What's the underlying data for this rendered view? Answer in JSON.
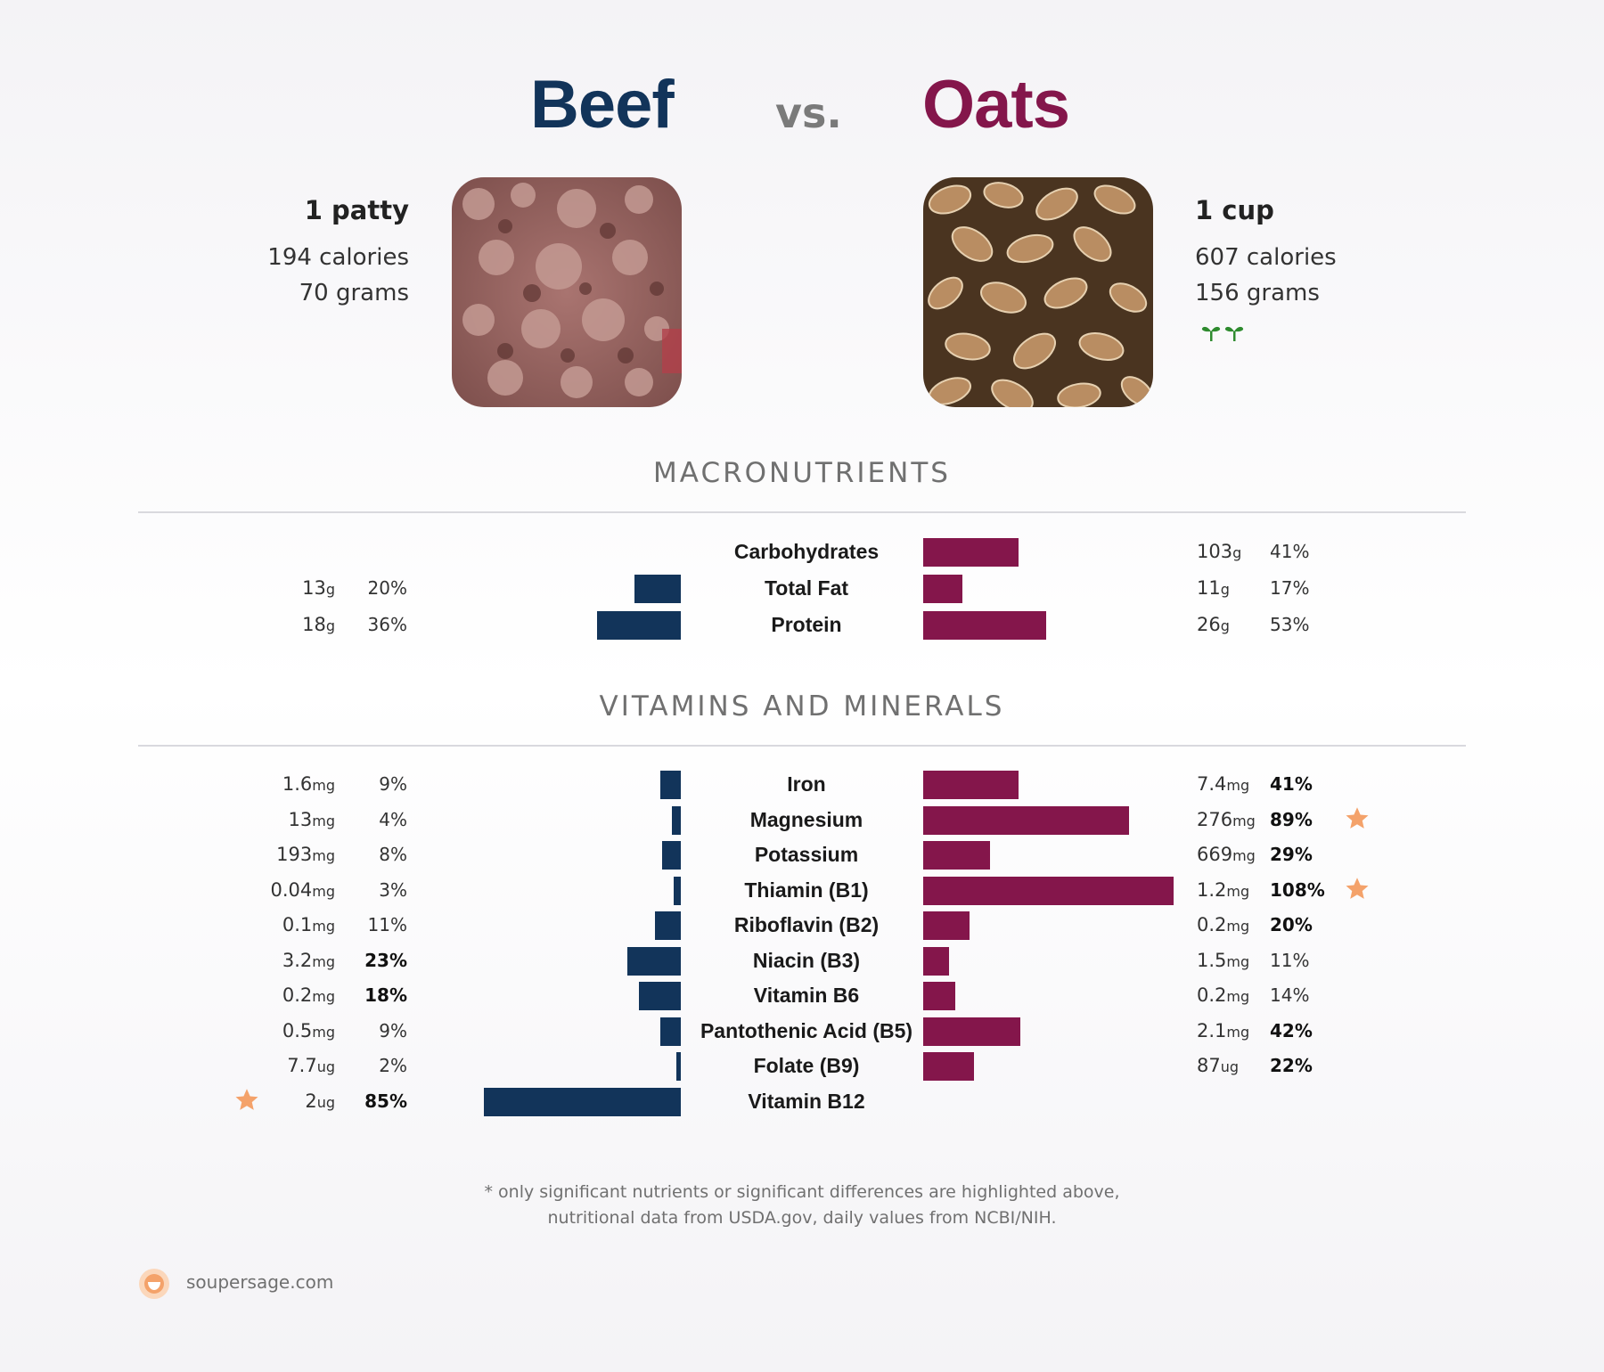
{
  "colors": {
    "beef": "#12345a",
    "oats": "#84164b",
    "star": "#f4a26a",
    "leaf": "#2e8b2e"
  },
  "header": {
    "left_food": "Beef",
    "vs": "vs.",
    "right_food": "Oats"
  },
  "left": {
    "serving": "1 patty",
    "calories": "194 calories",
    "grams": "70 grams"
  },
  "right": {
    "serving": "1 cup",
    "calories": "607 calories",
    "grams": "156 grams",
    "icon": "sprout-icon"
  },
  "sections": {
    "macro": "MACRONUTRIENTS",
    "vitamins": "VITAMINS AND MINERALS"
  },
  "chart_data": [
    {
      "type": "bar",
      "title": "MACRONUTRIENTS",
      "categories": [
        "Carbohydrates",
        "Total Fat",
        "Protein"
      ],
      "series": [
        {
          "name": "Beef",
          "amounts": [
            "",
            "13",
            "18"
          ],
          "units": [
            "",
            "g",
            "g"
          ],
          "values": [
            null,
            20,
            36
          ],
          "bold": [
            false,
            false,
            false
          ]
        },
        {
          "name": "Oats",
          "amounts": [
            "103",
            "11",
            "26"
          ],
          "units": [
            "g",
            "g",
            "g"
          ],
          "values": [
            41,
            17,
            53
          ],
          "bold": [
            false,
            false,
            false
          ]
        }
      ]
    },
    {
      "type": "bar",
      "title": "VITAMINS AND MINERALS",
      "categories": [
        "Iron",
        "Magnesium",
        "Potassium",
        "Thiamin (B1)",
        "Riboflavin (B2)",
        "Niacin (B3)",
        "Vitamin B6",
        "Pantothenic Acid (B5)",
        "Folate (B9)",
        "Vitamin B12"
      ],
      "series": [
        {
          "name": "Beef",
          "amounts": [
            "1.6",
            "13",
            "193",
            "0.04",
            "0.1",
            "3.2",
            "0.2",
            "0.5",
            "7.7",
            "2"
          ],
          "units": [
            "mg",
            "mg",
            "mg",
            "mg",
            "mg",
            "mg",
            "mg",
            "mg",
            "ug",
            "ug"
          ],
          "values": [
            9,
            4,
            8,
            3,
            11,
            23,
            18,
            9,
            2,
            85
          ],
          "bold": [
            false,
            false,
            false,
            false,
            false,
            true,
            true,
            false,
            false,
            true
          ],
          "stars": [
            false,
            false,
            false,
            false,
            false,
            false,
            false,
            false,
            false,
            true
          ]
        },
        {
          "name": "Oats",
          "amounts": [
            "7.4",
            "276",
            "669",
            "1.2",
            "0.2",
            "1.5",
            "0.2",
            "2.1",
            "87",
            ""
          ],
          "units": [
            "mg",
            "mg",
            "mg",
            "mg",
            "mg",
            "mg",
            "mg",
            "mg",
            "ug",
            ""
          ],
          "values": [
            41,
            89,
            29,
            108,
            20,
            11,
            14,
            42,
            22,
            null
          ],
          "bold": [
            true,
            true,
            true,
            true,
            true,
            false,
            false,
            true,
            true,
            false
          ],
          "stars": [
            false,
            true,
            false,
            true,
            false,
            false,
            false,
            false,
            false,
            false
          ]
        }
      ]
    }
  ],
  "footer": {
    "line1": "* only significant nutrients or significant differences are highlighted above,",
    "line2": "nutritional data from USDA.gov, daily values from NCBI/NIH.",
    "site": "soupersage.com",
    "logo_icon": "soupersage-logo-icon"
  }
}
